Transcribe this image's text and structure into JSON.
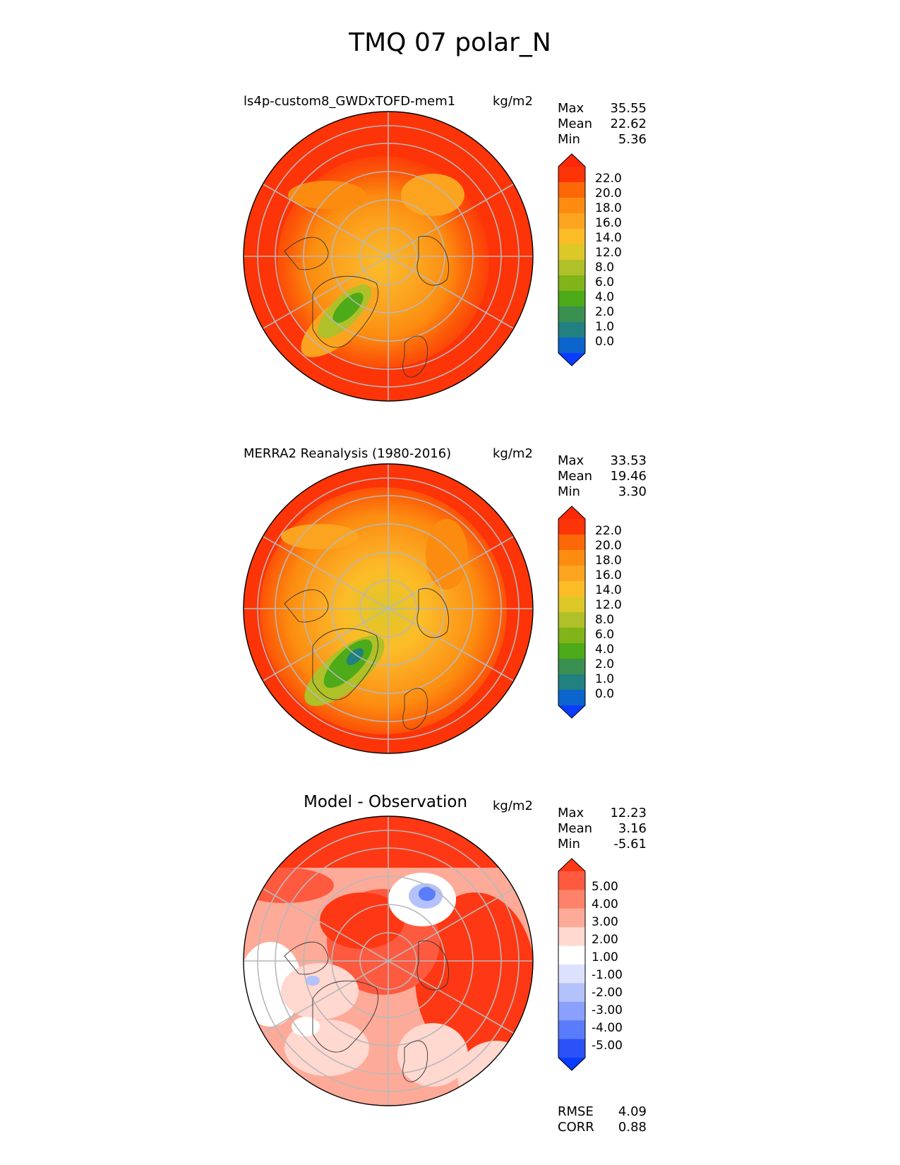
{
  "title": "TMQ 07 polar_N",
  "units": "kg/m2",
  "panels": [
    {
      "title": "ls4p-custom8_GWDxTOFD-mem1",
      "stats": {
        "max_label": "Max",
        "max": "35.55",
        "mean_label": "Mean",
        "mean": "22.62",
        "min_label": "Min",
        "min": "5.36"
      },
      "colorbar": {
        "colors": [
          "#0a3cff",
          "#0b65cd",
          "#218080",
          "#3a9050",
          "#4daa18",
          "#80b418",
          "#b0c028",
          "#dcc828",
          "#fcbc28",
          "#fca420",
          "#fc8c10",
          "#fc6808",
          "#fc3408",
          "#fc2808"
        ],
        "labels": [
          "0.0",
          "1.0",
          "2.0",
          "4.0",
          "6.0",
          "8.0",
          "12.0",
          "14.0",
          "16.0",
          "18.0",
          "20.0",
          "22.0"
        ]
      }
    },
    {
      "title": "MERRA2 Reanalysis (1980-2016)",
      "stats": {
        "max_label": "Max",
        "max": "33.53",
        "mean_label": "Mean",
        "mean": "19.46",
        "min_label": "Min",
        "min": "3.30"
      },
      "colorbar": {
        "colors": [
          "#0a3cff",
          "#0b65cd",
          "#218080",
          "#3a9050",
          "#4daa18",
          "#80b418",
          "#b0c028",
          "#dcc828",
          "#fcbc28",
          "#fca420",
          "#fc8c10",
          "#fc6808",
          "#fc3408",
          "#fc2808"
        ],
        "labels": [
          "0.0",
          "1.0",
          "2.0",
          "4.0",
          "6.0",
          "8.0",
          "12.0",
          "14.0",
          "16.0",
          "18.0",
          "20.0",
          "22.0"
        ]
      }
    },
    {
      "title": "Model - Observation",
      "stats": {
        "max_label": "Max",
        "max": "12.23",
        "mean_label": "Mean",
        "mean": "3.16",
        "min_label": "Min",
        "min": "-5.61"
      },
      "colorbar": {
        "colors": [
          "#0a3cff",
          "#2a52f8",
          "#5a7cfa",
          "#8aa0fc",
          "#b4c2fc",
          "#dce2fe",
          "#ffffff",
          "#ffd8d0",
          "#feaa98",
          "#fe826a",
          "#fe5a40",
          "#fe3814"
        ],
        "labels": [
          "-5.00",
          "-4.00",
          "-3.00",
          "-2.00",
          "-1.00",
          "1.00",
          "2.00",
          "3.00",
          "4.00",
          "5.00"
        ]
      },
      "rmse_label": "RMSE",
      "rmse": "4.09",
      "corr_label": "CORR",
      "corr": "0.88"
    }
  ]
}
